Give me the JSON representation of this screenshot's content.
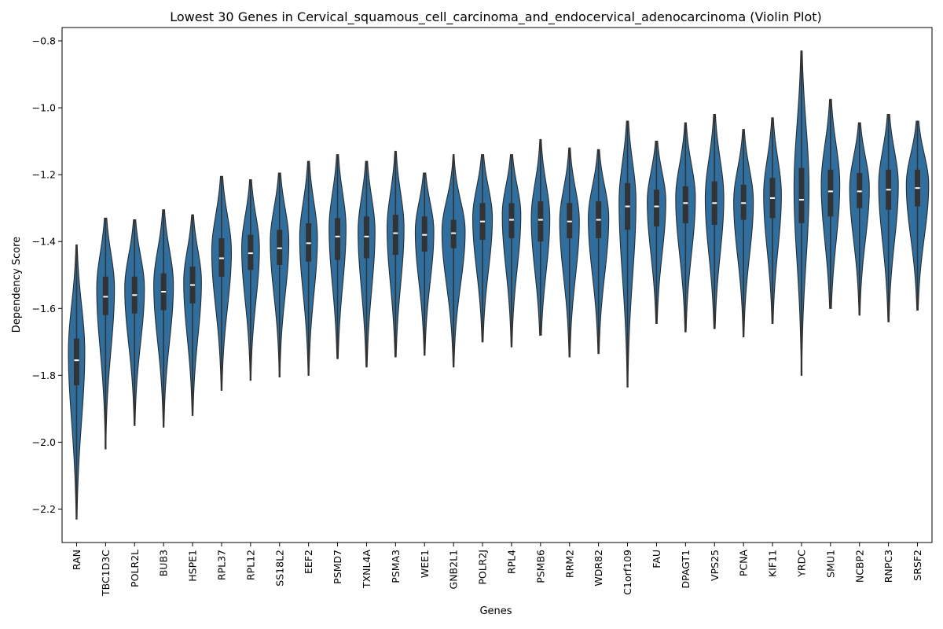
{
  "chart_data": {
    "type": "violin",
    "title": "Lowest 30 Genes in Cervical_squamous_cell_carcinoma_and_endocervical_adenocarcinoma (Violin Plot)",
    "xlabel": "Genes",
    "ylabel": "Dependency Score",
    "ylim": [
      -2.3,
      -0.76
    ],
    "yticks": [
      -0.8,
      -1.0,
      -1.2,
      -1.4,
      -1.6,
      -1.8,
      -2.0,
      -2.2
    ],
    "ytick_labels": [
      "−0.8",
      "−1.0",
      "−1.2",
      "−1.4",
      "−1.6",
      "−1.8",
      "−2.0",
      "−2.2"
    ],
    "grid": false,
    "color": "#2f6f9f",
    "categories": [
      "RAN",
      "TBC1D3C",
      "POLR2L",
      "BUB3",
      "HSPE1",
      "RPL37",
      "RPL12",
      "SS18L2",
      "EEF2",
      "PSMD7",
      "TXNL4A",
      "PSMA3",
      "WEE1",
      "GNB2L1",
      "POLR2J",
      "RPL4",
      "PSMB6",
      "RRM2",
      "WDR82",
      "C1orf109",
      "FAU",
      "DPAGT1",
      "VPS25",
      "PCNA",
      "KIF11",
      "YRDC",
      "SMU1",
      "NCBP2",
      "RNPC3",
      "SRSF2"
    ],
    "series": [
      {
        "min": -2.23,
        "q1": -1.83,
        "median": -1.755,
        "q3": -1.69,
        "max": -1.41,
        "mode": -1.73,
        "width": 0.6
      },
      {
        "min": -2.02,
        "q1": -1.62,
        "median": -1.565,
        "q3": -1.505,
        "max": -1.33,
        "mode": -1.54,
        "width": 0.65
      },
      {
        "min": -1.95,
        "q1": -1.615,
        "median": -1.56,
        "q3": -1.505,
        "max": -1.335,
        "mode": -1.54,
        "width": 0.72
      },
      {
        "min": -1.955,
        "q1": -1.605,
        "median": -1.55,
        "q3": -1.495,
        "max": -1.305,
        "mode": -1.53,
        "width": 0.72
      },
      {
        "min": -1.92,
        "q1": -1.585,
        "median": -1.53,
        "q3": -1.475,
        "max": -1.32,
        "mode": -1.52,
        "width": 0.65
      },
      {
        "min": -1.845,
        "q1": -1.505,
        "median": -1.45,
        "q3": -1.39,
        "max": -1.205,
        "mode": -1.43,
        "width": 0.72
      },
      {
        "min": -1.815,
        "q1": -1.485,
        "median": -1.435,
        "q3": -1.38,
        "max": -1.215,
        "mode": -1.42,
        "width": 0.65
      },
      {
        "min": -1.805,
        "q1": -1.47,
        "median": -1.42,
        "q3": -1.365,
        "max": -1.195,
        "mode": -1.4,
        "width": 0.68
      },
      {
        "min": -1.8,
        "q1": -1.46,
        "median": -1.405,
        "q3": -1.345,
        "max": -1.16,
        "mode": -1.39,
        "width": 0.65
      },
      {
        "min": -1.75,
        "q1": -1.455,
        "median": -1.385,
        "q3": -1.33,
        "max": -1.14,
        "mode": -1.36,
        "width": 0.62
      },
      {
        "min": -1.775,
        "q1": -1.45,
        "median": -1.385,
        "q3": -1.325,
        "max": -1.16,
        "mode": -1.37,
        "width": 0.62
      },
      {
        "min": -1.745,
        "q1": -1.44,
        "median": -1.375,
        "q3": -1.32,
        "max": -1.13,
        "mode": -1.36,
        "width": 0.62
      },
      {
        "min": -1.74,
        "q1": -1.43,
        "median": -1.38,
        "q3": -1.325,
        "max": -1.195,
        "mode": -1.37,
        "width": 0.68
      },
      {
        "min": -1.775,
        "q1": -1.42,
        "median": -1.375,
        "q3": -1.335,
        "max": -1.14,
        "mode": -1.37,
        "width": 0.85
      },
      {
        "min": -1.7,
        "q1": -1.395,
        "median": -1.34,
        "q3": -1.285,
        "max": -1.14,
        "mode": -1.33,
        "width": 0.72
      },
      {
        "min": -1.715,
        "q1": -1.39,
        "median": -1.335,
        "q3": -1.285,
        "max": -1.14,
        "mode": -1.32,
        "width": 0.68
      },
      {
        "min": -1.68,
        "q1": -1.4,
        "median": -1.335,
        "q3": -1.28,
        "max": -1.095,
        "mode": -1.33,
        "width": 0.68
      },
      {
        "min": -1.745,
        "q1": -1.39,
        "median": -1.34,
        "q3": -1.285,
        "max": -1.12,
        "mode": -1.34,
        "width": 0.72
      },
      {
        "min": -1.735,
        "q1": -1.39,
        "median": -1.335,
        "q3": -1.28,
        "max": -1.125,
        "mode": -1.33,
        "width": 0.75
      },
      {
        "min": -1.835,
        "q1": -1.365,
        "median": -1.295,
        "q3": -1.225,
        "max": -1.04,
        "mode": -1.28,
        "width": 0.62
      },
      {
        "min": -1.645,
        "q1": -1.355,
        "median": -1.295,
        "q3": -1.245,
        "max": -1.1,
        "mode": -1.28,
        "width": 0.68
      },
      {
        "min": -1.67,
        "q1": -1.345,
        "median": -1.285,
        "q3": -1.235,
        "max": -1.045,
        "mode": -1.27,
        "width": 0.72
      },
      {
        "min": -1.66,
        "q1": -1.35,
        "median": -1.285,
        "q3": -1.22,
        "max": -1.02,
        "mode": -1.27,
        "width": 0.68
      },
      {
        "min": -1.685,
        "q1": -1.335,
        "median": -1.285,
        "q3": -1.23,
        "max": -1.065,
        "mode": -1.28,
        "width": 0.72
      },
      {
        "min": -1.645,
        "q1": -1.33,
        "median": -1.27,
        "q3": -1.21,
        "max": -1.03,
        "mode": -1.26,
        "width": 0.65
      },
      {
        "min": -1.8,
        "q1": -1.345,
        "median": -1.275,
        "q3": -1.18,
        "max": -0.83,
        "mode": -1.24,
        "width": 0.55
      },
      {
        "min": -1.6,
        "q1": -1.325,
        "median": -1.25,
        "q3": -1.185,
        "max": -0.975,
        "mode": -1.23,
        "width": 0.68
      },
      {
        "min": -1.62,
        "q1": -1.3,
        "median": -1.25,
        "q3": -1.195,
        "max": -1.045,
        "mode": -1.24,
        "width": 0.72
      },
      {
        "min": -1.64,
        "q1": -1.305,
        "median": -1.245,
        "q3": -1.185,
        "max": -1.02,
        "mode": -1.23,
        "width": 0.72
      },
      {
        "min": -1.605,
        "q1": -1.295,
        "median": -1.24,
        "q3": -1.185,
        "max": -1.04,
        "mode": -1.23,
        "width": 0.82
      }
    ]
  }
}
